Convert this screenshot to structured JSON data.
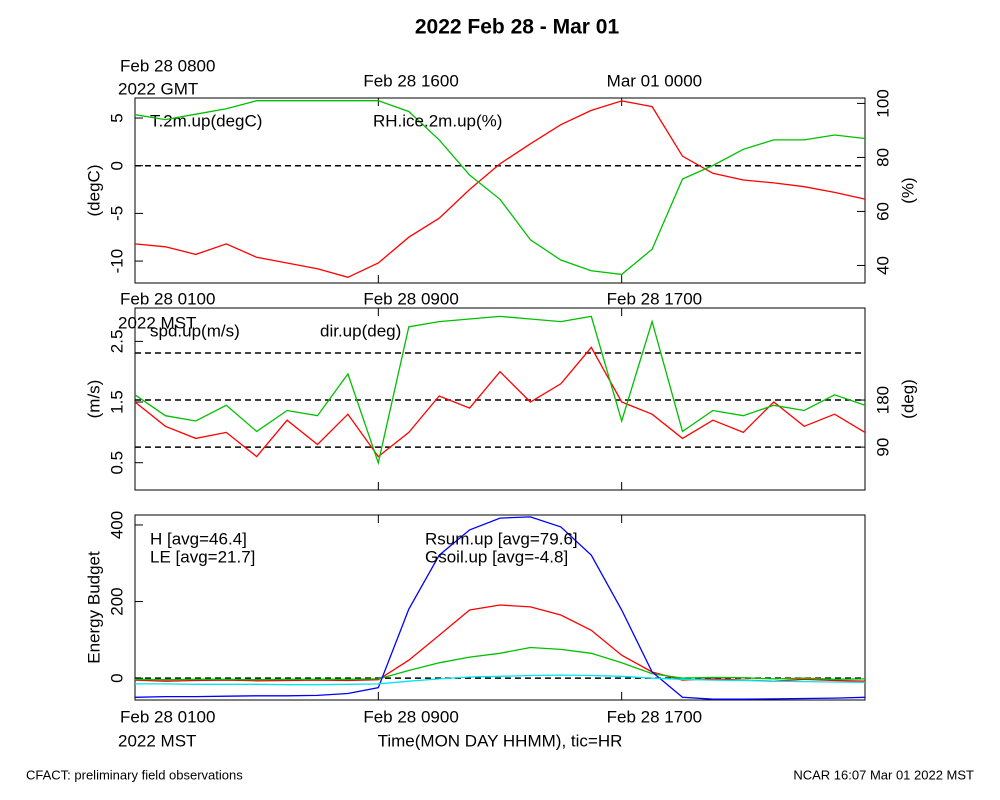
{
  "title": "2022 Feb 28 - Mar 01",
  "footer_left": "CFACT: preliminary field observations",
  "footer_right": "NCAR 16:07 Mar 01 2022 MST",
  "chart_data": [
    {
      "type": "line",
      "ylabel": "(degC)",
      "y2label": "(%)",
      "xlim": [
        "2022-02-28 01:00",
        "2022-03-01 01:00"
      ],
      "xticks": [
        {
          "value": "2022-02-28 01:00",
          "label": "Feb 28 0800"
        },
        {
          "value": "2022-02-28 09:00",
          "label": "Feb 28 1600"
        },
        {
          "value": "2022-02-28 17:00",
          "label": "Mar 01 0000"
        }
      ],
      "xtick_sublabel": "2022 GMT",
      "ylim": [
        -12.3,
        7.1
      ],
      "yticks": [
        -10,
        -5,
        0,
        5
      ],
      "y2lim": [
        33.5,
        102
      ],
      "y2ticks": [
        40,
        60,
        80,
        100
      ],
      "ref_lines": [
        0
      ],
      "x": [
        "2022-02-28 01:00",
        "2022-02-28 02:00",
        "2022-02-28 03:00",
        "2022-02-28 04:00",
        "2022-02-28 05:00",
        "2022-02-28 06:00",
        "2022-02-28 07:00",
        "2022-02-28 08:00",
        "2022-02-28 09:00",
        "2022-02-28 10:00",
        "2022-02-28 11:00",
        "2022-02-28 12:00",
        "2022-02-28 13:00",
        "2022-02-28 14:00",
        "2022-02-28 15:00",
        "2022-02-28 16:00",
        "2022-02-28 17:00",
        "2022-02-28 18:00",
        "2022-02-28 19:00",
        "2022-02-28 20:00",
        "2022-02-28 21:00",
        "2022-02-28 22:00",
        "2022-02-28 23:00",
        "2022-03-01 00:00",
        "2022-03-01 01:00"
      ],
      "series": [
        {
          "name": "T.2m.up(degC)",
          "color": "#ff0000",
          "values": [
            -8.2,
            -8.5,
            -9.3,
            -8.2,
            -9.6,
            -10.2,
            -10.8,
            -11.7,
            -10.2,
            -7.5,
            -5.5,
            -2.5,
            0.2,
            2.3,
            4.3,
            5.8,
            6.8,
            6.2,
            1.0,
            -0.8,
            -1.5,
            -1.8,
            -2.2,
            -2.8,
            -3.5
          ]
        },
        {
          "name": "RH.ice.2m.up(%)",
          "color": "#00c000",
          "axis": "y2",
          "values": [
            95.8,
            94,
            96,
            98,
            101,
            101,
            101,
            101,
            101,
            97,
            86.5,
            73.5,
            64.5,
            49.5,
            42,
            38,
            36.7,
            46,
            72,
            77,
            83,
            86.5,
            86.5,
            88.3,
            87
          ]
        }
      ]
    },
    {
      "type": "line",
      "ylabel": "(m/s)",
      "y2label": "(deg)",
      "xlim": [
        "2022-02-28 01:00",
        "2022-03-01 01:00"
      ],
      "xticks": [
        {
          "value": "2022-02-28 01:00",
          "label": "Feb 28 0100"
        },
        {
          "value": "2022-02-28 09:00",
          "label": "Feb 28 0900"
        },
        {
          "value": "2022-02-28 17:00",
          "label": "Feb 28 1700"
        }
      ],
      "xtick_sublabel": "2022 MST",
      "ylim": [
        0.05,
        3.05
      ],
      "yticks": [
        0.5,
        1.5,
        2.5
      ],
      "y2lim": [
        8,
        356
      ],
      "y2ticks": [
        90,
        180
      ],
      "y2_ref_lines": [
        90,
        180,
        270
      ],
      "x": [
        "2022-02-28 01:00",
        "2022-02-28 02:00",
        "2022-02-28 03:00",
        "2022-02-28 04:00",
        "2022-02-28 05:00",
        "2022-02-28 06:00",
        "2022-02-28 07:00",
        "2022-02-28 08:00",
        "2022-02-28 09:00",
        "2022-02-28 10:00",
        "2022-02-28 11:00",
        "2022-02-28 12:00",
        "2022-02-28 13:00",
        "2022-02-28 14:00",
        "2022-02-28 15:00",
        "2022-02-28 16:00",
        "2022-02-28 17:00",
        "2022-02-28 18:00",
        "2022-02-28 19:00",
        "2022-02-28 20:00",
        "2022-02-28 21:00",
        "2022-02-28 22:00",
        "2022-02-28 23:00",
        "2022-03-01 00:00",
        "2022-03-01 01:00"
      ],
      "series": [
        {
          "name": "spd.up(m/s)",
          "color": "#ff0000",
          "values": [
            1.5,
            1.1,
            0.9,
            1.0,
            0.6,
            1.2,
            0.8,
            1.3,
            0.6,
            1.0,
            1.6,
            1.4,
            2.0,
            1.5,
            1.8,
            2.4,
            1.5,
            1.3,
            0.9,
            1.2,
            1.0,
            1.5,
            1.1,
            1.3,
            1.0
          ]
        },
        {
          "name": "dir.up(deg)",
          "color": "#00c000",
          "axis": "y2",
          "values": [
            190,
            150,
            140,
            170,
            120,
            160,
            150,
            230,
            60,
            320,
            330,
            335,
            340,
            335,
            330,
            340,
            140,
            330,
            120,
            160,
            150,
            170,
            160,
            190,
            170
          ]
        }
      ]
    },
    {
      "type": "line",
      "ylabel": "Energy Budget",
      "xlabel": "Time(MON DAY HHMM), tic=HR",
      "xlim": [
        "2022-02-28 01:00",
        "2022-03-01 01:00"
      ],
      "xticks": [
        {
          "value": "2022-02-28 01:00",
          "label": "Feb 28 0100"
        },
        {
          "value": "2022-02-28 09:00",
          "label": "Feb 28 0900"
        },
        {
          "value": "2022-02-28 17:00",
          "label": "Feb 28 1700"
        }
      ],
      "xtick_sublabel": "2022 MST",
      "ylim": [
        -57,
        426
      ],
      "yticks": [
        0,
        200,
        400
      ],
      "ref_lines": [
        0
      ],
      "x": [
        "2022-02-28 01:00",
        "2022-02-28 02:00",
        "2022-02-28 03:00",
        "2022-02-28 04:00",
        "2022-02-28 05:00",
        "2022-02-28 06:00",
        "2022-02-28 07:00",
        "2022-02-28 08:00",
        "2022-02-28 09:00",
        "2022-02-28 10:00",
        "2022-02-28 11:00",
        "2022-02-28 12:00",
        "2022-02-28 13:00",
        "2022-02-28 14:00",
        "2022-02-28 15:00",
        "2022-02-28 16:00",
        "2022-02-28 17:00",
        "2022-02-28 18:00",
        "2022-02-28 19:00",
        "2022-02-28 20:00",
        "2022-02-28 21:00",
        "2022-02-28 22:00",
        "2022-02-28 23:00",
        "2022-03-01 00:00",
        "2022-03-01 01:00"
      ],
      "series": [
        {
          "name": "H [avg=46.4]",
          "color": "#ff0000",
          "values": [
            -5,
            -8,
            -6,
            -5,
            -7,
            -6,
            -5,
            -6,
            -4,
            47,
            112,
            178,
            191,
            186,
            165,
            125,
            60,
            16,
            -5,
            -2,
            -5,
            -8,
            -3,
            -6,
            -8
          ]
        },
        {
          "name": "LE [avg=21.7]",
          "color": "#00c000",
          "values": [
            -3,
            -4,
            -3,
            -3,
            -4,
            -3,
            -3,
            -3,
            -2,
            20,
            40,
            55,
            65,
            80,
            75,
            65,
            40,
            12,
            0,
            2,
            1,
            -2,
            0,
            -3,
            -2
          ]
        },
        {
          "name": "Rsum.up [avg=79.6]",
          "color": "#0000ff",
          "values": [
            -50,
            -48,
            -48,
            -47,
            -46,
            -46,
            -45,
            -40,
            -25,
            180,
            321,
            387,
            418,
            421,
            395,
            321,
            178,
            16,
            -50,
            -55,
            -55,
            -54,
            -53,
            -52,
            -50
          ]
        },
        {
          "name": "Gsoil.up [avg=-4.8]",
          "color": "#00e5ee",
          "values": [
            -15,
            -15,
            -16,
            -16,
            -16,
            -17,
            -17,
            -16,
            -15,
            -8,
            -2,
            3,
            5,
            7,
            8,
            7,
            5,
            0,
            -3,
            -5,
            -6,
            -8,
            -9,
            -10,
            -11
          ]
        }
      ]
    }
  ]
}
